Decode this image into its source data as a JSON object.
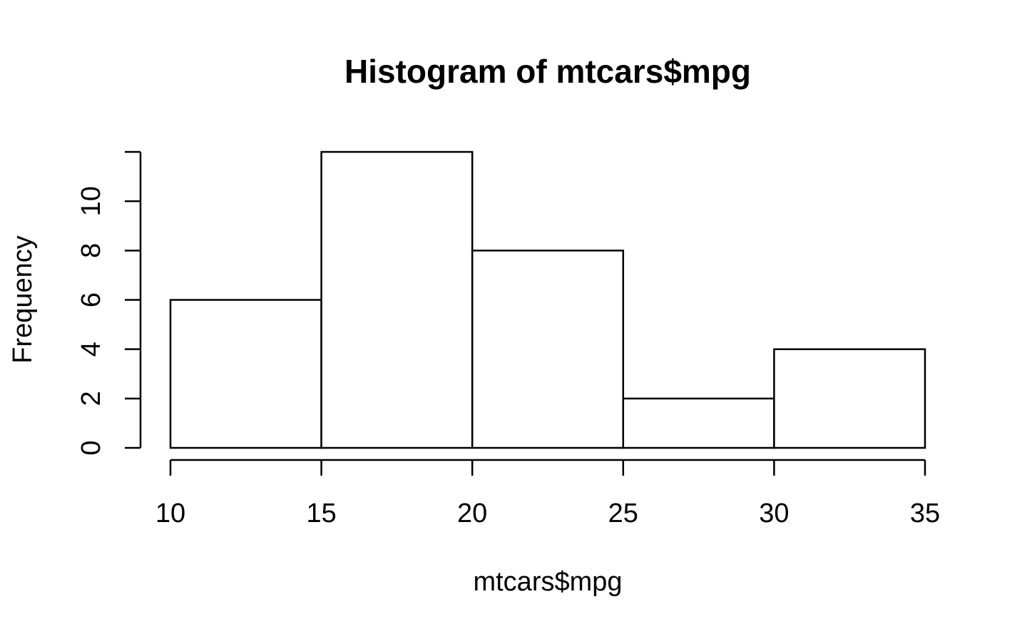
{
  "chart_data": {
    "type": "bar",
    "subtype": "histogram",
    "title": "Histogram of mtcars$mpg",
    "xlabel": "mtcars$mpg",
    "ylabel": "Frequency",
    "bins": [
      {
        "start": 10,
        "end": 15,
        "count": 6
      },
      {
        "start": 15,
        "end": 20,
        "count": 12
      },
      {
        "start": 20,
        "end": 25,
        "count": 8
      },
      {
        "start": 25,
        "end": 30,
        "count": 2
      },
      {
        "start": 30,
        "end": 35,
        "count": 4
      }
    ],
    "xticks": [
      10,
      15,
      20,
      25,
      30,
      35
    ],
    "xtick_labels": [
      "10",
      "15",
      "20",
      "25",
      "30",
      "35"
    ],
    "yticks": [
      0,
      2,
      4,
      6,
      8,
      10,
      12
    ],
    "ytick_labels": [
      "0",
      "2",
      "4",
      "6",
      "8",
      "10",
      ""
    ],
    "xlim": [
      10,
      35
    ],
    "ylim": [
      0,
      12
    ],
    "grid": false,
    "legend": "none",
    "colors": {
      "bar_fill": "#ffffff",
      "bar_stroke": "#000000",
      "background": "#ffffff"
    }
  }
}
